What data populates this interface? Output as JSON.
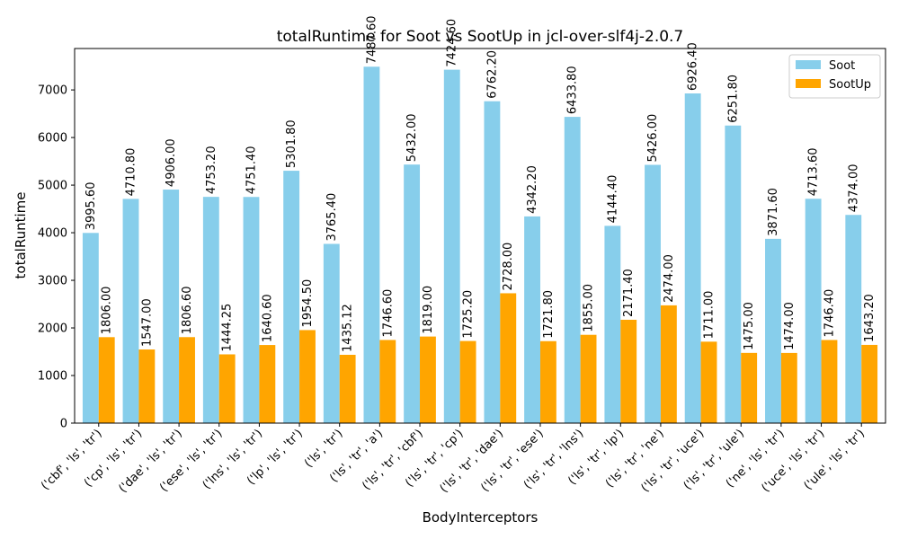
{
  "chart_data": {
    "type": "bar",
    "title": "totalRuntime for Soot vs SootUp in jcl-over-slf4j-2.0.7",
    "xlabel": "BodyInterceptors",
    "ylabel": "totalRuntime",
    "ylim": [
      0,
      7870
    ],
    "yticks": [
      0,
      1000,
      2000,
      3000,
      4000,
      5000,
      6000,
      7000
    ],
    "legend_position": "top-right",
    "grid": false,
    "categories": [
      "('cbf', 'ls', 'tr')",
      "('cp', 'ls', 'tr')",
      "('dae', 'ls', 'tr')",
      "('ese', 'ls', 'tr')",
      "('lns', 'ls', 'tr')",
      "('lp', 'ls', 'tr')",
      "('ls', 'tr')",
      "('ls', 'tr', 'a')",
      "('ls', 'tr', 'cbf')",
      "('ls', 'tr', 'cp')",
      "('ls', 'tr', 'dae')",
      "('ls', 'tr', 'ese')",
      "('ls', 'tr', 'lns')",
      "('ls', 'tr', 'lp')",
      "('ls', 'tr', 'ne')",
      "('ls', 'tr', 'uce')",
      "('ls', 'tr', 'ule')",
      "('ne', 'ls', 'tr')",
      "('uce', 'ls', 'tr')",
      "('ule', 'ls', 'tr')"
    ],
    "series": [
      {
        "name": "Soot",
        "color": "#87ceeb",
        "values": [
          3995.6,
          4710.8,
          4906.0,
          4753.2,
          4751.4,
          5301.8,
          3765.4,
          7487.6,
          5432.0,
          7424.6,
          6762.2,
          4342.2,
          6433.8,
          4144.4,
          5426.0,
          6926.4,
          6251.8,
          3871.6,
          4713.6,
          4374.0
        ],
        "labels": [
          "3995.60",
          "4710.80",
          "4906.00",
          "4753.20",
          "4751.40",
          "5301.80",
          "3765.40",
          "7487.60",
          "5432.00",
          "7424.60",
          "6762.20",
          "4342.20",
          "6433.80",
          "4144.40",
          "5426.00",
          "6926.40",
          "6251.80",
          "3871.60",
          "4713.60",
          "4374.00"
        ]
      },
      {
        "name": "SootUp",
        "color": "#ffa500",
        "values": [
          1806.0,
          1547.0,
          1806.6,
          1444.25,
          1640.6,
          1954.5,
          1435.12,
          1746.6,
          1819.0,
          1725.2,
          2728.0,
          1721.8,
          1855.0,
          2171.4,
          2474.0,
          1711.0,
          1475.0,
          1474.0,
          1746.4,
          1643.2
        ],
        "labels": [
          "1806.00",
          "1547.00",
          "1806.60",
          "1444.25",
          "1640.60",
          "1954.50",
          "1435.12",
          "1746.60",
          "1819.00",
          "1725.20",
          "2728.00",
          "1721.80",
          "1855.00",
          "2171.40",
          "2474.00",
          "1711.00",
          "1475.00",
          "1474.00",
          "1746.40",
          "1643.20"
        ]
      }
    ]
  }
}
